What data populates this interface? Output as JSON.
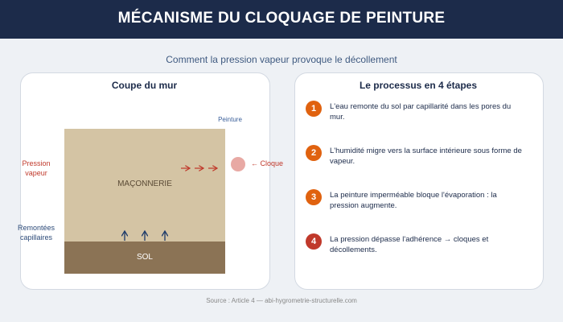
{
  "header": {
    "title": "MÉCANISME DU CLOQUAGE DE PEINTURE"
  },
  "subtitle": "Comment la pression vapeur provoque le décollement",
  "wall_panel": {
    "title": "Coupe du mur",
    "masonry": "MAÇONNERIE",
    "ground": "SOL",
    "paint": "Peinture",
    "vapor_pressure": "Pression vapeur",
    "capillary_rise": "Remontées capillaires",
    "blister": "← Cloque"
  },
  "process_panel": {
    "title": "Le processus en 4 étapes",
    "steps": [
      {
        "number": "1",
        "text": "L'eau remonte du sol par capillarité dans les pores du mur."
      },
      {
        "number": "2",
        "text": "L'humidité migre vers la surface intérieure sous forme de vapeur."
      },
      {
        "number": "3",
        "text": "La peinture imperméable bloque l'évaporation : la pression augmente."
      },
      {
        "number": "4",
        "text": "La pression dépasse l'adhérence → cloques et décollements."
      }
    ]
  },
  "footer": {
    "source": "Source : Article 4 — abi-hygrometrie-structurelle.com"
  }
}
